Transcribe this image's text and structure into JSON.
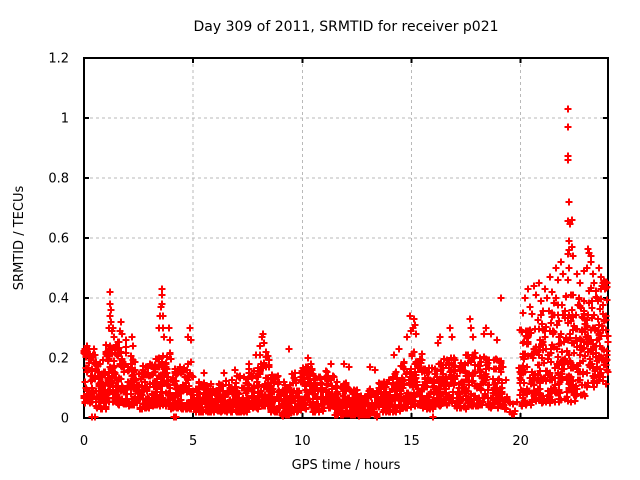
{
  "figure": {
    "background": "#ffffff",
    "border_color": "#000000",
    "text_color": "#000000"
  },
  "chart_data": {
    "type": "scatter",
    "title": "Day 309 of 2011, SRMTID for receiver p021",
    "xlabel": "GPS time / hours",
    "ylabel": "SRMTID / TECUs",
    "xlim": [
      0,
      24
    ],
    "ylim": [
      0,
      1.2
    ],
    "xticks": [
      0,
      5,
      10,
      15,
      20
    ],
    "xtick_labels": [
      "0",
      "5",
      "10",
      "15",
      "20"
    ],
    "yticks": [
      0,
      0.2,
      0.4,
      0.6,
      0.8,
      1,
      1.2
    ],
    "ytick_labels": [
      "0",
      "0.2",
      "0.4",
      "0.6",
      "0.8",
      "1",
      "1.2"
    ],
    "grid": true,
    "legend": null,
    "marker": {
      "shape": "plus",
      "color": "#ff0000",
      "size": 7
    },
    "grid_color": "#b9b9b9",
    "seed": 2011309,
    "series": [
      {
        "name": "SRMTID",
        "representation": "density_bins_plus_points",
        "bins_format": [
          "t_start",
          "t_end",
          "count",
          "v_low",
          "v_high",
          "shape_exponent"
        ],
        "bins": [
          [
            0.0,
            0.5,
            55,
            0.05,
            0.24,
            1.3
          ],
          [
            0.5,
            1.0,
            55,
            0.03,
            0.2,
            1.5
          ],
          [
            1.0,
            1.5,
            60,
            0.05,
            0.25,
            1.4
          ],
          [
            1.5,
            2.0,
            55,
            0.04,
            0.26,
            1.5
          ],
          [
            2.0,
            2.5,
            55,
            0.04,
            0.21,
            1.5
          ],
          [
            2.5,
            3.0,
            50,
            0.03,
            0.18,
            1.6
          ],
          [
            3.0,
            3.5,
            50,
            0.04,
            0.2,
            1.5
          ],
          [
            3.5,
            4.0,
            55,
            0.04,
            0.22,
            1.5
          ],
          [
            4.0,
            4.5,
            50,
            0.03,
            0.18,
            1.6
          ],
          [
            4.5,
            5.0,
            50,
            0.03,
            0.19,
            1.6
          ],
          [
            5.0,
            5.5,
            50,
            0.02,
            0.12,
            1.6
          ],
          [
            5.5,
            6.0,
            50,
            0.02,
            0.12,
            1.6
          ],
          [
            6.0,
            6.5,
            50,
            0.02,
            0.12,
            1.6
          ],
          [
            6.5,
            7.0,
            50,
            0.02,
            0.13,
            1.6
          ],
          [
            7.0,
            7.5,
            50,
            0.02,
            0.14,
            1.6
          ],
          [
            7.5,
            8.0,
            50,
            0.03,
            0.17,
            1.6
          ],
          [
            8.0,
            8.5,
            55,
            0.04,
            0.21,
            1.4
          ],
          [
            8.5,
            9.0,
            50,
            0.02,
            0.15,
            1.6
          ],
          [
            9.0,
            9.5,
            55,
            0.01,
            0.12,
            1.7
          ],
          [
            9.5,
            10.0,
            50,
            0.02,
            0.15,
            1.6
          ],
          [
            10.0,
            10.5,
            50,
            0.03,
            0.17,
            1.5
          ],
          [
            10.5,
            11.0,
            50,
            0.02,
            0.14,
            1.6
          ],
          [
            11.0,
            11.5,
            50,
            0.03,
            0.16,
            1.5
          ],
          [
            11.5,
            12.0,
            55,
            0.01,
            0.12,
            1.8
          ],
          [
            12.0,
            12.5,
            55,
            0.01,
            0.1,
            1.8
          ],
          [
            12.5,
            13.0,
            55,
            0.01,
            0.08,
            1.8
          ],
          [
            13.0,
            13.5,
            55,
            0.01,
            0.1,
            1.8
          ],
          [
            13.5,
            14.0,
            50,
            0.02,
            0.13,
            1.6
          ],
          [
            14.0,
            14.5,
            50,
            0.02,
            0.16,
            1.6
          ],
          [
            14.5,
            15.0,
            50,
            0.03,
            0.2,
            1.5
          ],
          [
            15.0,
            15.5,
            55,
            0.04,
            0.22,
            1.4
          ],
          [
            15.5,
            16.0,
            50,
            0.03,
            0.18,
            1.6
          ],
          [
            16.0,
            16.5,
            50,
            0.04,
            0.2,
            1.5
          ],
          [
            16.5,
            17.0,
            50,
            0.04,
            0.21,
            1.5
          ],
          [
            17.0,
            17.5,
            50,
            0.03,
            0.19,
            1.6
          ],
          [
            17.5,
            18.0,
            50,
            0.04,
            0.22,
            1.5
          ],
          [
            18.0,
            18.5,
            50,
            0.04,
            0.21,
            1.5
          ],
          [
            18.5,
            19.0,
            45,
            0.03,
            0.2,
            1.6
          ],
          [
            19.0,
            19.35,
            25,
            0.03,
            0.22,
            1.5
          ],
          [
            19.35,
            19.9,
            10,
            0.01,
            0.07,
            1.5
          ],
          [
            19.9,
            20.5,
            50,
            0.03,
            0.3,
            1.4
          ],
          [
            20.5,
            21.0,
            55,
            0.05,
            0.35,
            1.3
          ],
          [
            21.0,
            21.5,
            55,
            0.05,
            0.36,
            1.3
          ],
          [
            21.5,
            22.0,
            55,
            0.05,
            0.4,
            1.3
          ],
          [
            22.0,
            22.5,
            60,
            0.05,
            0.44,
            1.3
          ],
          [
            22.5,
            23.0,
            55,
            0.07,
            0.4,
            1.2
          ],
          [
            23.0,
            23.5,
            55,
            0.1,
            0.44,
            1.1
          ],
          [
            23.5,
            24.0,
            60,
            0.11,
            0.46,
            1.0
          ]
        ],
        "points_format": [
          "t",
          "v"
        ],
        "points": [
          [
            0.1,
            0.22
          ],
          [
            0.25,
            0.23
          ],
          [
            0.35,
            0.004
          ],
          [
            0.5,
            0.004
          ],
          [
            1.15,
            0.3
          ],
          [
            1.17,
            0.34
          ],
          [
            1.19,
            0.38
          ],
          [
            1.21,
            0.42
          ],
          [
            1.22,
            0.36
          ],
          [
            1.24,
            0.32
          ],
          [
            1.27,
            0.29
          ],
          [
            1.32,
            0.3
          ],
          [
            1.38,
            0.27
          ],
          [
            1.65,
            0.29
          ],
          [
            1.7,
            0.32
          ],
          [
            1.74,
            0.28
          ],
          [
            1.92,
            0.26
          ],
          [
            2.18,
            0.27
          ],
          [
            2.26,
            0.24
          ],
          [
            3.44,
            0.3
          ],
          [
            3.48,
            0.34
          ],
          [
            3.52,
            0.37
          ],
          [
            3.55,
            0.41
          ],
          [
            3.56,
            0.43
          ],
          [
            3.58,
            0.38
          ],
          [
            3.61,
            0.34
          ],
          [
            3.64,
            0.3
          ],
          [
            3.68,
            0.27
          ],
          [
            3.88,
            0.3
          ],
          [
            3.94,
            0.26
          ],
          [
            4.12,
            0.004
          ],
          [
            4.2,
            0.004
          ],
          [
            4.78,
            0.27
          ],
          [
            4.85,
            0.3
          ],
          [
            4.92,
            0.26
          ],
          [
            5.5,
            0.15
          ],
          [
            6.4,
            0.15
          ],
          [
            6.9,
            0.16
          ],
          [
            7.55,
            0.18
          ],
          [
            7.9,
            0.21
          ],
          [
            8.08,
            0.24
          ],
          [
            8.15,
            0.27
          ],
          [
            8.2,
            0.28
          ],
          [
            8.26,
            0.25
          ],
          [
            8.32,
            0.22
          ],
          [
            9.05,
            0.01
          ],
          [
            9.08,
            0.012
          ],
          [
            9.1,
            0.008
          ],
          [
            9.12,
            0.015
          ],
          [
            9.4,
            0.23
          ],
          [
            10.25,
            0.2
          ],
          [
            10.4,
            0.18
          ],
          [
            11.3,
            0.18
          ],
          [
            11.92,
            0.18
          ],
          [
            12.12,
            0.17
          ],
          [
            12.6,
            0.006
          ],
          [
            12.65,
            0.01
          ],
          [
            13.1,
            0.17
          ],
          [
            13.35,
            0.16
          ],
          [
            13.4,
            0.005
          ],
          [
            14.2,
            0.21
          ],
          [
            14.42,
            0.23
          ],
          [
            14.8,
            0.27
          ],
          [
            14.93,
            0.34
          ],
          [
            14.96,
            0.29
          ],
          [
            15.05,
            0.3
          ],
          [
            15.1,
            0.33
          ],
          [
            15.15,
            0.31
          ],
          [
            15.22,
            0.28
          ],
          [
            16.0,
            0.004
          ],
          [
            16.2,
            0.25
          ],
          [
            16.32,
            0.27
          ],
          [
            16.78,
            0.3
          ],
          [
            16.86,
            0.27
          ],
          [
            17.68,
            0.33
          ],
          [
            17.74,
            0.3
          ],
          [
            17.82,
            0.27
          ],
          [
            18.3,
            0.28
          ],
          [
            18.42,
            0.3
          ],
          [
            18.62,
            0.28
          ],
          [
            18.9,
            0.26
          ],
          [
            19.1,
            0.4
          ],
          [
            20.1,
            0.35
          ],
          [
            20.22,
            0.4
          ],
          [
            20.32,
            0.43
          ],
          [
            20.42,
            0.37
          ],
          [
            20.6,
            0.44
          ],
          [
            20.72,
            0.41
          ],
          [
            20.85,
            0.45
          ],
          [
            20.95,
            0.39
          ],
          [
            21.1,
            0.43
          ],
          [
            21.22,
            0.4
          ],
          [
            21.33,
            0.47
          ],
          [
            21.45,
            0.42
          ],
          [
            21.6,
            0.5
          ],
          [
            21.72,
            0.46
          ],
          [
            21.83,
            0.52
          ],
          [
            21.92,
            0.48
          ],
          [
            22.15,
            0.46
          ],
          [
            22.17,
            0.545
          ],
          [
            22.17,
            0.875
          ],
          [
            22.18,
            0.655
          ],
          [
            22.18,
            0.97
          ],
          [
            22.18,
            1.03
          ],
          [
            22.19,
            0.86
          ],
          [
            22.2,
            0.56
          ],
          [
            22.2,
            0.59
          ],
          [
            22.2,
            0.72
          ],
          [
            22.22,
            0.5
          ],
          [
            22.28,
            0.645
          ],
          [
            22.33,
            0.66
          ],
          [
            22.35,
            0.57
          ],
          [
            22.38,
            0.54
          ],
          [
            22.6,
            0.48
          ],
          [
            22.72,
            0.45
          ],
          [
            22.9,
            0.49
          ],
          [
            23.05,
            0.5
          ],
          [
            23.1,
            0.565
          ],
          [
            23.15,
            0.55
          ],
          [
            23.2,
            0.54
          ],
          [
            23.22,
            0.52
          ],
          [
            23.3,
            0.48
          ],
          [
            23.35,
            0.45
          ],
          [
            23.6,
            0.5
          ],
          [
            23.7,
            0.47
          ],
          [
            23.78,
            0.45
          ],
          [
            23.88,
            0.43
          ],
          [
            23.95,
            0.45
          ]
        ]
      }
    ]
  }
}
